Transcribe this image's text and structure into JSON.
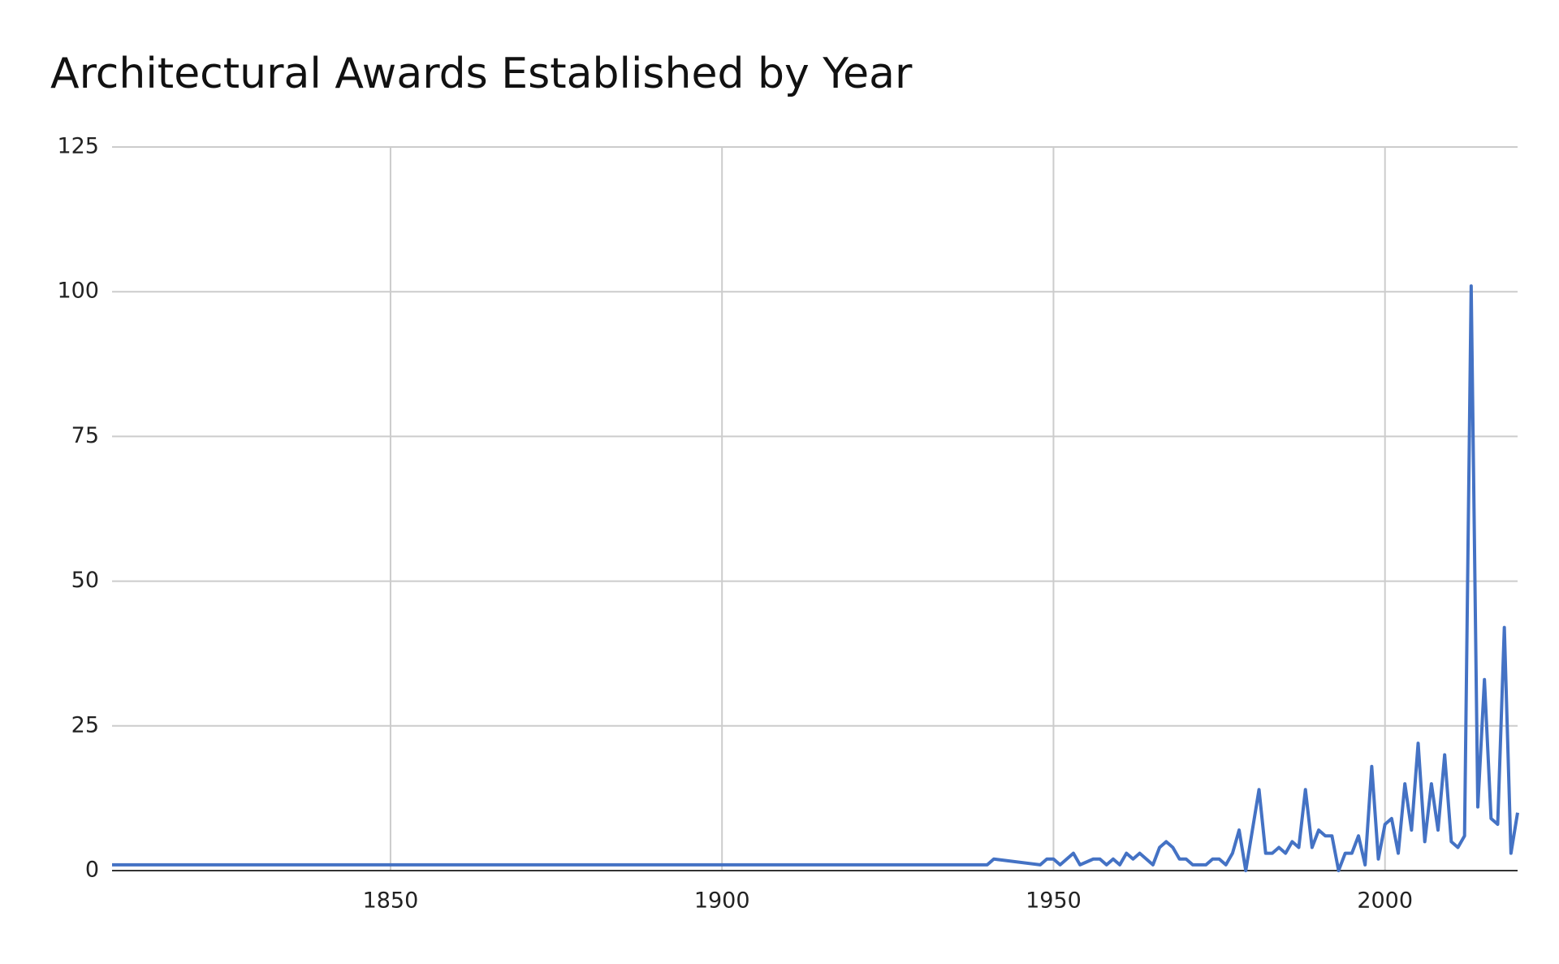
{
  "chart_data": {
    "type": "line",
    "title": "Architectural Awards Established by Year",
    "x": [
      1808,
      1940,
      1941,
      1948,
      1949,
      1950,
      1951,
      1953,
      1954,
      1956,
      1957,
      1958,
      1959,
      1960,
      1961,
      1962,
      1963,
      1964,
      1965,
      1966,
      1967,
      1968,
      1969,
      1970,
      1971,
      1973,
      1974,
      1975,
      1976,
      1977,
      1978,
      1979,
      1980,
      1981,
      1982,
      1983,
      1984,
      1985,
      1986,
      1987,
      1988,
      1989,
      1990,
      1991,
      1992,
      1993,
      1994,
      1995,
      1996,
      1997,
      1998,
      1999,
      2000,
      2001,
      2002,
      2003,
      2004,
      2005,
      2006,
      2007,
      2008,
      2009,
      2010,
      2011,
      2012,
      2013,
      2014,
      2015,
      2016,
      2017,
      2018,
      2019,
      2020
    ],
    "series": [
      {
        "color": "#4472c4",
        "values": [
          1,
          1,
          2,
          1,
          2,
          2,
          1,
          3,
          1,
          2,
          2,
          1,
          2,
          1,
          3,
          2,
          3,
          2,
          1,
          4,
          5,
          4,
          2,
          2,
          1,
          1,
          2,
          2,
          1,
          3,
          7,
          0,
          7,
          14,
          3,
          3,
          4,
          3,
          5,
          4,
          14,
          4,
          7,
          6,
          6,
          0,
          3,
          3,
          6,
          1,
          18,
          2,
          8,
          9,
          3,
          15,
          7,
          22,
          5,
          15,
          7,
          20,
          5,
          4,
          6,
          101,
          11,
          33,
          9,
          8,
          42,
          3,
          10
        ]
      }
    ],
    "xlim": [
      1808,
      2020
    ],
    "xticks": [
      1850,
      1900,
      1950,
      2000
    ],
    "ylim": [
      0,
      125
    ],
    "yticks": [
      0,
      25,
      50,
      75,
      100,
      125
    ],
    "grid": true
  }
}
